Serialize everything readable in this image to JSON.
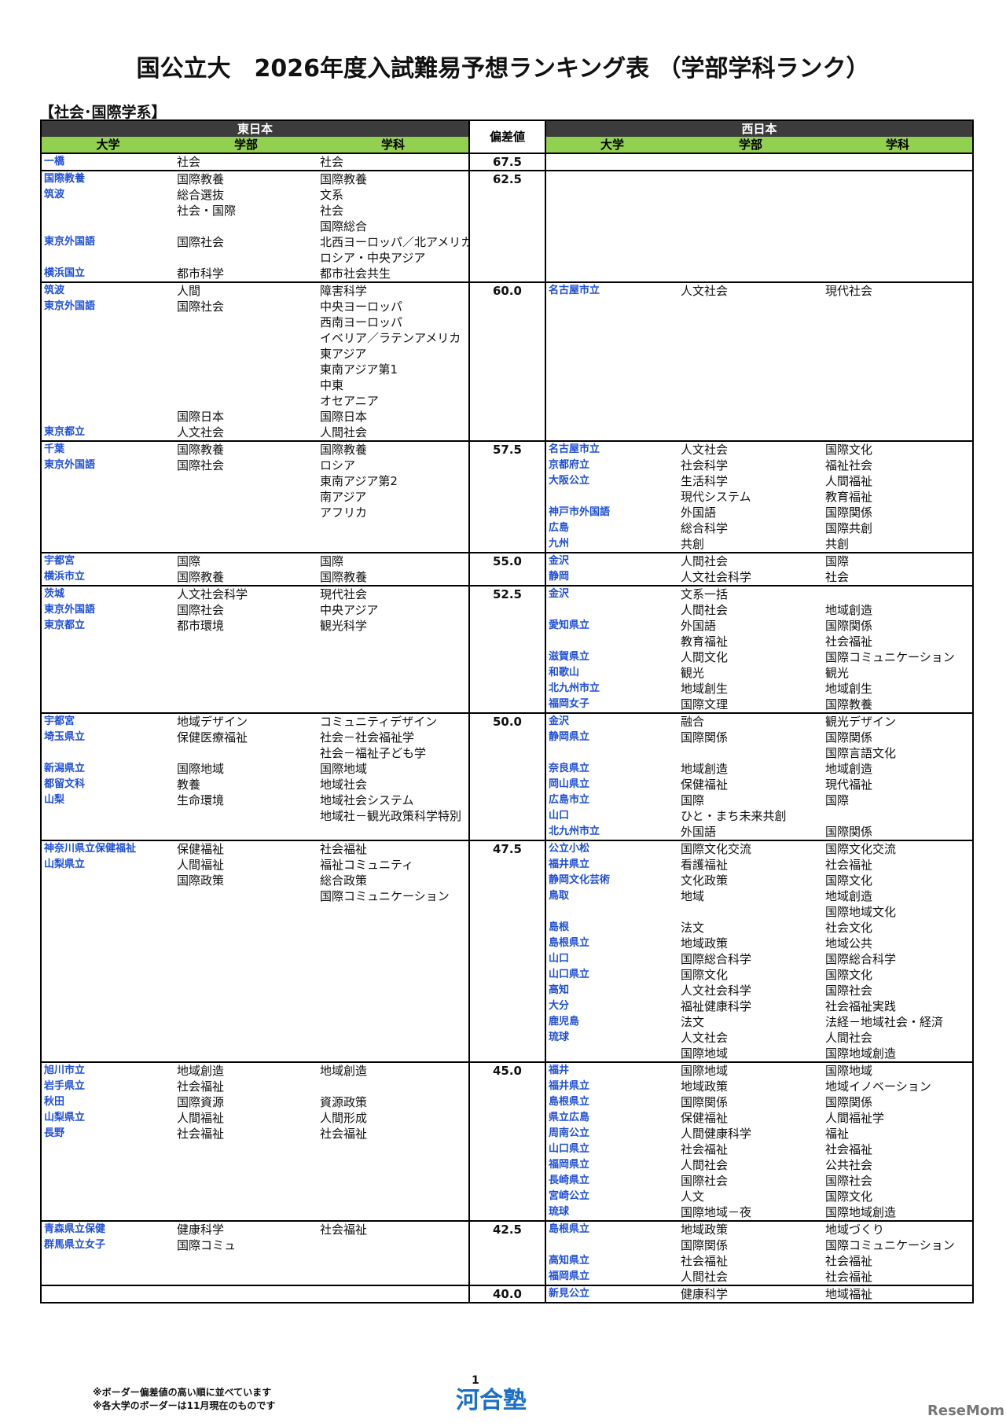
{
  "header": {
    "title": "国公立大　2026年度入試難易予想ランキング表 （学部学科ランク）",
    "section": "【社会･国際学系】"
  },
  "table": {
    "east": "東日本",
    "west": "西日本",
    "score": "偏差値",
    "columns": [
      "大学",
      "学部",
      "学科"
    ],
    "groups": [
      {
        "score": "67.5",
        "east": [
          [
            "一橋",
            "社会",
            "社会"
          ]
        ],
        "west": []
      },
      {
        "score": "62.5",
        "east": [
          [
            "国際教養",
            "国際教養",
            "国際教養"
          ],
          [
            "筑波",
            "総合選抜",
            "文系"
          ],
          [
            null,
            "社会・国際",
            "社会"
          ],
          [
            null,
            null,
            "国際総合"
          ],
          [
            "東京外国語",
            "国際社会",
            "北西ヨーロッパ／北アメリカ"
          ],
          [
            null,
            null,
            "ロシア・中央アジア"
          ],
          [
            "横浜国立",
            "都市科学",
            "都市社会共生"
          ]
        ],
        "west": []
      },
      {
        "score": "60.0",
        "east": [
          [
            "筑波",
            "人間",
            "障害科学"
          ],
          [
            "東京外国語",
            "国際社会",
            "中央ヨーロッパ"
          ],
          [
            null,
            null,
            "西南ヨーロッパ"
          ],
          [
            null,
            null,
            "イベリア／ラテンアメリカ"
          ],
          [
            null,
            null,
            "東アジア"
          ],
          [
            null,
            null,
            "東南アジア第1"
          ],
          [
            null,
            null,
            "中東"
          ],
          [
            null,
            null,
            "オセアニア"
          ],
          [
            null,
            "国際日本",
            "国際日本"
          ],
          [
            "東京都立",
            "人文社会",
            "人間社会"
          ]
        ],
        "west": [
          [
            "名古屋市立",
            "人文社会",
            "現代社会"
          ]
        ]
      },
      {
        "score": "57.5",
        "east": [
          [
            "千葉",
            "国際教養",
            "国際教養"
          ],
          [
            "東京外国語",
            "国際社会",
            "ロシア"
          ],
          [
            null,
            null,
            "東南アジア第2"
          ],
          [
            null,
            null,
            "南アジア"
          ],
          [
            null,
            null,
            "アフリカ"
          ]
        ],
        "west": [
          [
            "名古屋市立",
            "人文社会",
            "国際文化"
          ],
          [
            "京都府立",
            "社会科学",
            "福祉社会"
          ],
          [
            "大阪公立",
            "生活科学",
            "人間福祉"
          ],
          [
            null,
            "現代システム",
            "教育福祉"
          ],
          [
            "神戸市外国語",
            "外国語",
            "国際関係"
          ],
          [
            "広島",
            "総合科学",
            "国際共創"
          ],
          [
            "九州",
            "共創",
            "共創"
          ]
        ]
      },
      {
        "score": "55.0",
        "east": [
          [
            "宇都宮",
            "国際",
            "国際"
          ],
          [
            "横浜市立",
            "国際教養",
            "国際教養"
          ]
        ],
        "west": [
          [
            "金沢",
            "人間社会",
            "国際"
          ],
          [
            "静岡",
            "人文社会科学",
            "社会"
          ]
        ]
      },
      {
        "score": "52.5",
        "east": [
          [
            "茨城",
            "人文社会科学",
            "現代社会"
          ],
          [
            "東京外国語",
            "国際社会",
            "中央アジア"
          ],
          [
            "東京都立",
            "都市環境",
            "観光科学"
          ]
        ],
        "west": [
          [
            "金沢",
            "文系一括",
            null
          ],
          [
            null,
            "人間社会",
            "地域創造"
          ],
          [
            "愛知県立",
            "外国語",
            "国際関係"
          ],
          [
            null,
            "教育福祉",
            "社会福祉"
          ],
          [
            "滋賀県立",
            "人間文化",
            "国際コミュニケーション"
          ],
          [
            "和歌山",
            "観光",
            "観光"
          ],
          [
            "北九州市立",
            "地域創生",
            "地域創生"
          ],
          [
            "福岡女子",
            "国際文理",
            "国際教養"
          ]
        ]
      },
      {
        "score": "50.0",
        "east": [
          [
            "宇都宮",
            "地域デザイン",
            "コミュニティデザイン"
          ],
          [
            "埼玉県立",
            "保健医療福祉",
            "社会－社会福祉学"
          ],
          [
            null,
            null,
            "社会－福祉子ども学"
          ],
          [
            "新潟県立",
            "国際地域",
            "国際地域"
          ],
          [
            "都留文科",
            "教養",
            "地域社会"
          ],
          [
            "山梨",
            "生命環境",
            "地域社会システム"
          ],
          [
            null,
            null,
            "地域社－観光政策科学特別"
          ]
        ],
        "west": [
          [
            "金沢",
            "融合",
            "観光デザイン"
          ],
          [
            "静岡県立",
            "国際関係",
            "国際関係"
          ],
          [
            null,
            null,
            "国際言語文化"
          ],
          [
            "奈良県立",
            "地域創造",
            "地域創造"
          ],
          [
            "岡山県立",
            "保健福祉",
            "現代福祉"
          ],
          [
            "広島市立",
            "国際",
            "国際"
          ],
          [
            "山口",
            "ひと・まち未来共創",
            null
          ],
          [
            "北九州市立",
            "外国語",
            "国際関係"
          ]
        ]
      },
      {
        "score": "47.5",
        "east": [
          [
            "神奈川県立保健福祉",
            "保健福祉",
            "社会福祉"
          ],
          [
            "山梨県立",
            "人間福祉",
            "福祉コミュニティ"
          ],
          [
            null,
            "国際政策",
            "総合政策"
          ],
          [
            null,
            null,
            "国際コミュニケーション"
          ]
        ],
        "west": [
          [
            "公立小松",
            "国際文化交流",
            "国際文化交流"
          ],
          [
            "福井県立",
            "看護福祉",
            "社会福祉"
          ],
          [
            "静岡文化芸術",
            "文化政策",
            "国際文化"
          ],
          [
            "鳥取",
            "地域",
            "地域創造"
          ],
          [
            null,
            null,
            "国際地域文化"
          ],
          [
            "島根",
            "法文",
            "社会文化"
          ],
          [
            "島根県立",
            "地域政策",
            "地域公共"
          ],
          [
            "山口",
            "国際総合科学",
            "国際総合科学"
          ],
          [
            "山口県立",
            "国際文化",
            "国際文化"
          ],
          [
            "高知",
            "人文社会科学",
            "国際社会"
          ],
          [
            "大分",
            "福祉健康科学",
            "社会福祉実践"
          ],
          [
            "鹿児島",
            "法文",
            "法経－地域社会・経済"
          ],
          [
            "琉球",
            "人文社会",
            "人間社会"
          ],
          [
            null,
            "国際地域",
            "国際地域創造"
          ]
        ]
      },
      {
        "score": "45.0",
        "east": [
          [
            "旭川市立",
            "地域創造",
            "地域創造"
          ],
          [
            "岩手県立",
            "社会福祉",
            null
          ],
          [
            "秋田",
            "国際資源",
            "資源政策"
          ],
          [
            "山梨県立",
            "人間福祉",
            "人間形成"
          ],
          [
            "長野",
            "社会福祉",
            "社会福祉"
          ]
        ],
        "west": [
          [
            "福井",
            "国際地域",
            "国際地域"
          ],
          [
            "福井県立",
            "地域政策",
            "地域イノベーション"
          ],
          [
            "島根県立",
            "国際関係",
            "国際関係"
          ],
          [
            "県立広島",
            "保健福祉",
            "人間福祉学"
          ],
          [
            "周南公立",
            "人間健康科学",
            "福祉"
          ],
          [
            "山口県立",
            "社会福祉",
            "社会福祉"
          ],
          [
            "福岡県立",
            "人間社会",
            "公共社会"
          ],
          [
            "長崎県立",
            "国際社会",
            "国際社会"
          ],
          [
            "宮崎公立",
            "人文",
            "国際文化"
          ],
          [
            "琉球",
            "国際地域－夜",
            "国際地域創造"
          ]
        ]
      },
      {
        "score": "42.5",
        "east": [
          [
            "青森県立保健",
            "健康科学",
            "社会福祉"
          ],
          [
            "群馬県立女子",
            "国際コミュ",
            null
          ]
        ],
        "west": [
          [
            "島根県立",
            "地域政策",
            "地域づくり"
          ],
          [
            null,
            "国際関係",
            "国際コミュニケーション"
          ],
          [
            "高知県立",
            "社会福祉",
            "社会福祉"
          ],
          [
            "福岡県立",
            "人間社会",
            "社会福祉"
          ]
        ]
      },
      {
        "score": "40.0",
        "east": [],
        "west": [
          [
            "新見公立",
            "健康科学",
            "地域福祉"
          ]
        ]
      }
    ]
  },
  "footer": {
    "page": "1",
    "notes": [
      "※ボーダー偏差値の高い順に並べています",
      "※各大学のボーダーは11月現在のものです"
    ],
    "logo": "河合塾",
    "watermark": "ReseMom"
  }
}
